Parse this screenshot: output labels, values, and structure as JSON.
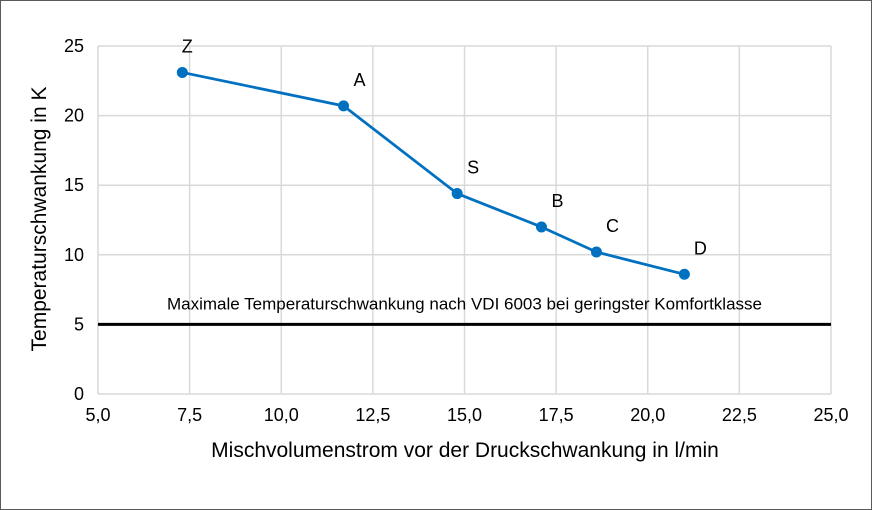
{
  "chart_data": {
    "type": "line",
    "title": "",
    "xlabel": "Mischvolumenstrom vor der Druckschwankung in l/min",
    "ylabel": "Temperaturschwankung in K",
    "xlim": [
      5.0,
      25.0
    ],
    "ylim": [
      0,
      25
    ],
    "x_ticks": [
      "5,0",
      "7,5",
      "10,0",
      "12,5",
      "15,0",
      "17,5",
      "20,0",
      "22,5",
      "25,0"
    ],
    "y_ticks": [
      "0",
      "5",
      "10",
      "15",
      "20",
      "25"
    ],
    "grid": true,
    "legend": null,
    "series": [
      {
        "name": "Temperaturschwankung",
        "color": "#0070C0",
        "marker": "circle",
        "points": [
          {
            "label": "Z",
            "x": 7.3,
            "y": 23.1
          },
          {
            "label": "A",
            "x": 11.7,
            "y": 20.7
          },
          {
            "label": "S",
            "x": 14.8,
            "y": 14.4
          },
          {
            "label": "B",
            "x": 17.1,
            "y": 12.0
          },
          {
            "label": "C",
            "x": 18.6,
            "y": 10.2
          },
          {
            "label": "D",
            "x": 21.0,
            "y": 8.6
          }
        ]
      }
    ],
    "annotations": [
      {
        "type": "hline",
        "y": 5,
        "color": "#000000",
        "text": "Maximale Temperaturschwankung nach VDI 6003 bei geringster Komfortklasse"
      }
    ]
  }
}
